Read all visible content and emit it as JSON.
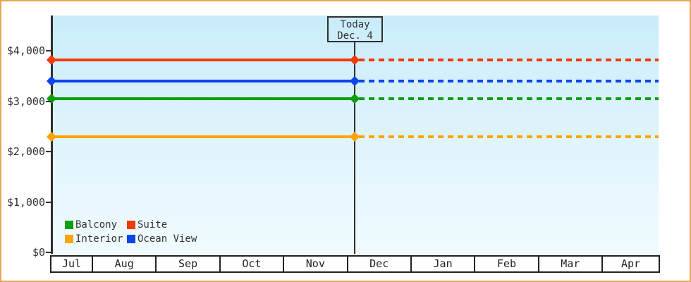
{
  "chart_data": {
    "type": "line",
    "title": "",
    "xlabel": "",
    "ylabel": "",
    "months": [
      "Jul",
      "Aug",
      "Sep",
      "Oct",
      "Nov",
      "Dec",
      "Jan",
      "Feb",
      "Mar",
      "Apr"
    ],
    "y_ticks": [
      {
        "label": "$4,000",
        "value": 4000
      },
      {
        "label": "$3,000",
        "value": 3000
      },
      {
        "label": "$2,000",
        "value": 2000
      },
      {
        "label": "$1,000",
        "value": 1000
      },
      {
        "label": "$0",
        "value": 0
      }
    ],
    "ylim": [
      0,
      4700
    ],
    "series": [
      {
        "name": "Suite",
        "color": "#f23a0a",
        "value": 3820
      },
      {
        "name": "Ocean View",
        "color": "#0b45ec",
        "value": 3400
      },
      {
        "name": "Balcony",
        "color": "#0aa00f",
        "value": 3050
      },
      {
        "name": "Interior",
        "color": "#ffa405",
        "value": 2290
      }
    ],
    "line_style": {
      "past": "solid",
      "future": "dotted"
    },
    "today": {
      "label_line1": "Today",
      "label_line2": "Dec. 4"
    },
    "legend": {
      "position": "bottom-left",
      "items": [
        {
          "label": "Balcony",
          "color": "#0aa00f"
        },
        {
          "label": "Suite",
          "color": "#f23a0a"
        },
        {
          "label": "Interior",
          "color": "#ffa405"
        },
        {
          "label": "Ocean View",
          "color": "#0b45ec"
        }
      ]
    }
  },
  "colors": {
    "frame_border": "#e9a552",
    "axis": "#2f2f2f",
    "text": "#333333",
    "plot_bg_top": "#c9ecfa",
    "plot_bg_bottom": "#f0fbfe"
  }
}
